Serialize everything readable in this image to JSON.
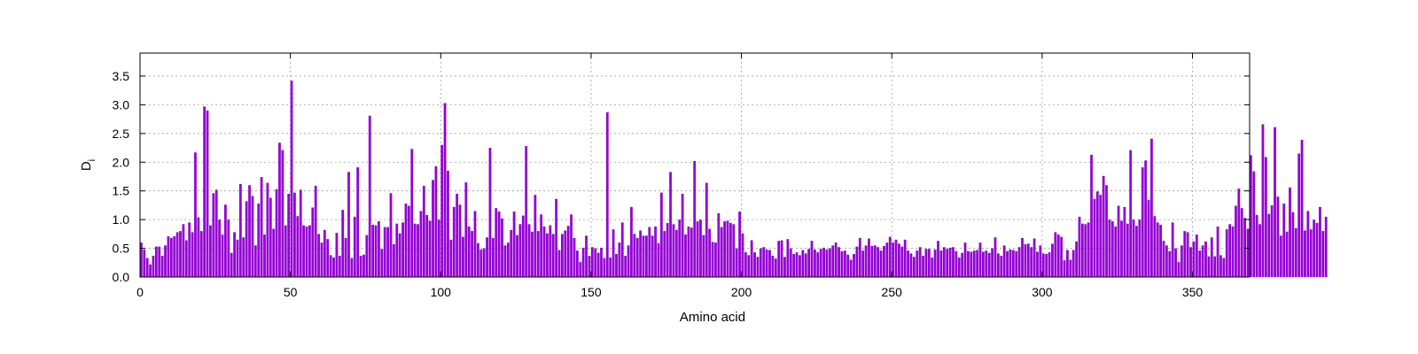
{
  "chart_data": {
    "type": "bar",
    "xlabel": "Amino acid",
    "ylabel_main": "D",
    "ylabel_sub": "i",
    "xlim": [
      0,
      369
    ],
    "ylim": [
      0,
      3.9
    ],
    "x_ticks": [
      0,
      50,
      100,
      150,
      200,
      250,
      300,
      350
    ],
    "y_ticks": [
      0.0,
      0.5,
      1.0,
      1.5,
      2.0,
      2.5,
      3.0,
      3.5
    ],
    "y_tick_labels": [
      "0.0",
      "0.5",
      "1.0",
      "1.5",
      "2.0",
      "2.5",
      "3.0",
      "3.5"
    ],
    "grid": true,
    "bar_color": "#9400d3",
    "values": [
      0.6,
      0.48,
      0.33,
      0.22,
      0.37,
      0.53,
      0.53,
      0.37,
      0.55,
      0.71,
      0.68,
      0.71,
      0.78,
      0.8,
      0.92,
      0.64,
      0.95,
      0.78,
      2.17,
      1.04,
      0.8,
      2.97,
      2.9,
      0.9,
      1.46,
      1.52,
      1.0,
      0.74,
      1.26,
      1.0,
      0.42,
      0.78,
      0.65,
      1.62,
      0.69,
      1.32,
      1.6,
      1.41,
      0.55,
      1.28,
      1.74,
      0.74,
      1.64,
      1.38,
      0.84,
      1.53,
      2.34,
      2.21,
      0.9,
      1.45,
      3.42,
      1.47,
      1.06,
      1.52,
      0.9,
      0.88,
      0.9,
      1.21,
      1.59,
      0.75,
      0.6,
      0.82,
      0.66,
      0.38,
      0.34,
      0.77,
      0.37,
      1.17,
      0.68,
      1.83,
      0.33,
      1.05,
      1.91,
      0.37,
      0.39,
      0.73,
      2.81,
      0.91,
      0.9,
      0.97,
      0.49,
      0.87,
      0.87,
      1.46,
      0.57,
      0.93,
      0.76,
      0.95,
      1.28,
      1.24,
      2.23,
      0.93,
      0.92,
      1.15,
      1.59,
      1.08,
      0.98,
      1.69,
      1.93,
      1.0,
      2.3,
      3.03,
      1.85,
      0.65,
      1.22,
      1.45,
      1.26,
      0.7,
      1.65,
      0.88,
      0.8,
      1.15,
      0.59,
      0.48,
      0.5,
      0.69,
      2.25,
      0.68,
      1.2,
      1.14,
      1.02,
      0.55,
      0.6,
      0.82,
      1.14,
      0.73,
      0.92,
      1.07,
      2.28,
      0.92,
      0.79,
      1.43,
      0.8,
      1.09,
      0.88,
      0.76,
      0.9,
      0.75,
      1.36,
      0.47,
      0.75,
      0.81,
      0.89,
      1.09,
      0.68,
      0.46,
      0.26,
      0.51,
      0.72,
      0.37,
      0.52,
      0.5,
      0.42,
      0.51,
      0.33,
      2.87,
      0.34,
      0.83,
      0.4,
      0.6,
      0.95,
      0.37,
      0.55,
      1.22,
      0.75,
      0.68,
      0.81,
      0.72,
      0.72,
      0.87,
      0.72,
      0.88,
      0.59,
      1.47,
      0.8,
      0.94,
      1.83,
      0.92,
      0.82,
      1.0,
      1.45,
      0.74,
      0.88,
      0.86,
      2.02,
      0.97,
      1.0,
      0.73,
      1.64,
      0.84,
      0.61,
      0.6,
      1.11,
      0.87,
      0.97,
      0.98,
      0.94,
      0.92,
      0.5,
      1.14,
      0.76,
      0.43,
      0.38,
      0.64,
      0.43,
      0.35,
      0.5,
      0.52,
      0.48,
      0.47,
      0.37,
      0.32,
      0.63,
      0.64,
      0.35,
      0.66,
      0.5,
      0.4,
      0.43,
      0.38,
      0.47,
      0.41,
      0.49,
      0.63,
      0.48,
      0.43,
      0.49,
      0.51,
      0.48,
      0.5,
      0.55,
      0.6,
      0.52,
      0.45,
      0.46,
      0.39,
      0.3,
      0.4,
      0.53,
      0.68,
      0.46,
      0.55,
      0.67,
      0.54,
      0.55,
      0.52,
      0.46,
      0.54,
      0.6,
      0.7,
      0.6,
      0.65,
      0.58,
      0.53,
      0.65,
      0.46,
      0.41,
      0.35,
      0.46,
      0.52,
      0.37,
      0.49,
      0.49,
      0.34,
      0.48,
      0.63,
      0.46,
      0.52,
      0.49,
      0.51,
      0.52,
      0.45,
      0.34,
      0.42,
      0.6,
      0.45,
      0.44,
      0.46,
      0.47,
      0.6,
      0.44,
      0.46,
      0.42,
      0.5,
      0.69,
      0.41,
      0.37,
      0.55,
      0.45,
      0.48,
      0.47,
      0.45,
      0.52,
      0.68,
      0.57,
      0.58,
      0.52,
      0.67,
      0.44,
      0.55,
      0.41,
      0.4,
      0.43,
      0.58,
      0.78,
      0.74,
      0.7,
      0.29,
      0.47,
      0.3,
      0.47,
      0.62,
      1.05,
      0.93,
      0.92,
      0.95,
      2.13,
      1.36,
      1.49,
      1.43,
      1.76,
      1.6,
      1.0,
      0.97,
      0.88,
      1.24,
      0.98,
      1.22,
      0.93,
      2.21,
      1.0,
      0.89,
      1.0,
      1.91,
      2.03,
      1.34,
      2.41,
      1.06,
      0.95,
      0.91,
      0.63,
      0.55,
      0.45,
      0.95,
      0.5,
      0.26,
      0.55,
      0.8,
      0.78,
      0.52,
      0.62,
      0.74,
      0.46,
      0.55,
      0.62,
      0.36,
      0.69,
      0.36,
      0.88,
      0.38,
      0.33,
      0.83,
      0.92,
      0.88,
      1.24,
      1.54,
      1.2,
      1.03,
      0.84,
      2.12,
      1.84,
      1.08,
      0.92,
      2.66,
      2.09,
      1.1,
      1.25,
      2.61,
      1.4,
      0.72,
      1.28,
      0.79,
      1.56,
      1.13,
      0.85,
      2.15,
      2.39,
      0.81,
      1.15,
      0.83,
      1.0,
      0.94,
      1.22,
      0.8,
      1.05
    ]
  }
}
